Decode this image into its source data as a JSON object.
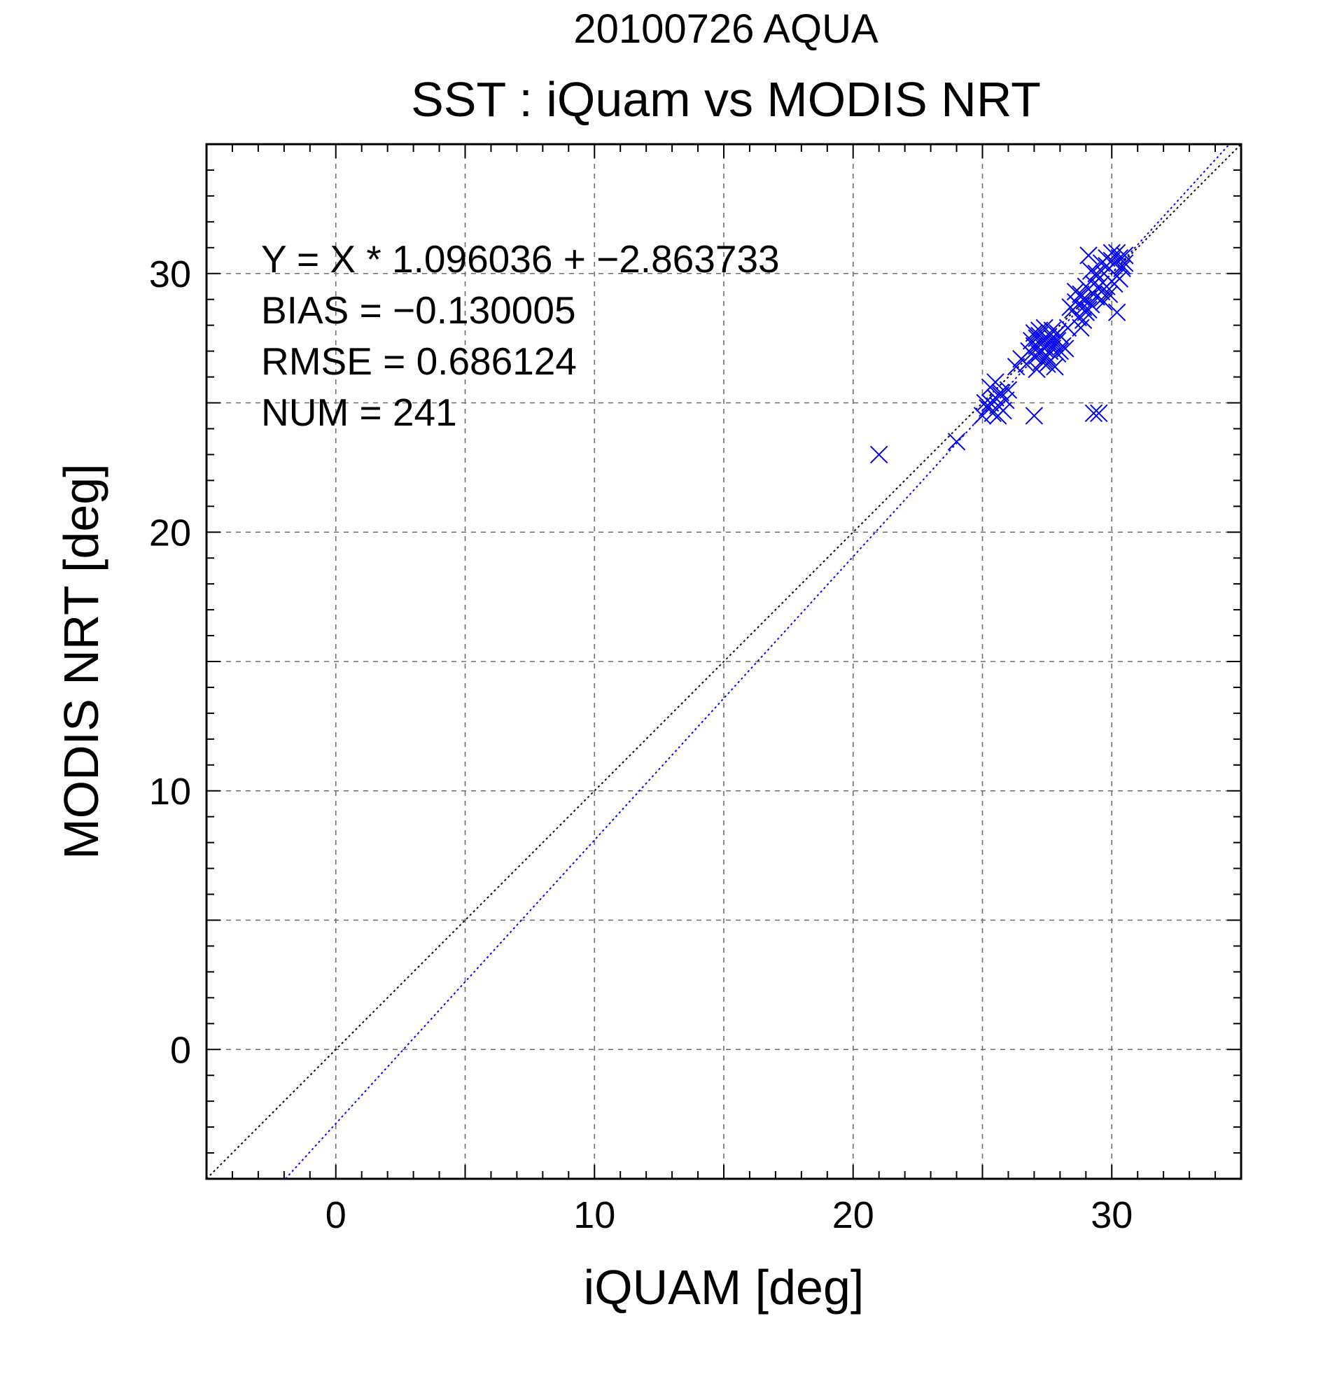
{
  "chart_data": {
    "type": "scatter",
    "title": "20100726 AQUA",
    "subtitle": "SST : iQuam vs MODIS NRT",
    "xlabel": "iQUAM [deg]",
    "ylabel": "MODIS NRT [deg]",
    "xlim": [
      -5,
      35
    ],
    "ylim": [
      -5,
      35
    ],
    "x_ticks": [
      0,
      10,
      20,
      30
    ],
    "y_ticks": [
      0,
      10,
      20,
      30
    ],
    "grid": true,
    "title_color": "#808080",
    "series": [
      {
        "color": "#0000ff",
        "marker": "x",
        "points": [
          [
            21.0,
            23.0
          ],
          [
            24.0,
            23.5
          ],
          [
            27.0,
            24.5
          ],
          [
            29.3,
            24.6
          ],
          [
            29.5,
            24.6
          ],
          [
            25.0,
            24.5
          ],
          [
            25.2,
            24.8
          ],
          [
            25.3,
            25.0
          ],
          [
            25.4,
            24.6
          ],
          [
            25.5,
            25.2
          ],
          [
            25.6,
            24.9
          ],
          [
            25.7,
            25.4
          ],
          [
            25.8,
            24.7
          ],
          [
            25.9,
            25.1
          ],
          [
            25.3,
            25.6
          ],
          [
            25.5,
            25.8
          ],
          [
            25.7,
            25.3
          ],
          [
            26.0,
            25.5
          ],
          [
            25.1,
            25.0
          ],
          [
            25.6,
            24.5
          ],
          [
            26.3,
            26.4
          ],
          [
            26.5,
            26.7
          ],
          [
            26.7,
            26.5
          ],
          [
            26.8,
            27.0
          ],
          [
            26.9,
            27.4
          ],
          [
            27.0,
            26.8
          ],
          [
            27.1,
            27.2
          ],
          [
            27.2,
            27.6
          ],
          [
            27.3,
            26.6
          ],
          [
            27.4,
            27.1
          ],
          [
            27.5,
            27.5
          ],
          [
            27.6,
            27.0
          ],
          [
            27.7,
            27.8
          ],
          [
            27.8,
            27.3
          ],
          [
            27.9,
            26.9
          ],
          [
            28.0,
            27.6
          ],
          [
            28.1,
            27.2
          ],
          [
            27.0,
            27.7
          ],
          [
            27.2,
            26.9
          ],
          [
            27.4,
            27.9
          ],
          [
            27.6,
            26.6
          ],
          [
            27.8,
            26.4
          ],
          [
            27.1,
            26.3
          ],
          [
            27.3,
            27.4
          ],
          [
            27.5,
            26.8
          ],
          [
            27.7,
            27.5
          ],
          [
            27.9,
            27.7
          ],
          [
            28.0,
            27.0
          ],
          [
            27.0,
            27.2
          ],
          [
            27.2,
            27.8
          ],
          [
            27.4,
            26.7
          ],
          [
            27.6,
            27.3
          ],
          [
            28.2,
            27.1
          ],
          [
            28.3,
            27.9
          ],
          [
            26.9,
            26.9
          ],
          [
            27.1,
            27.5
          ],
          [
            27.3,
            27.0
          ],
          [
            27.5,
            26.5
          ],
          [
            27.7,
            27.1
          ],
          [
            27.9,
            27.4
          ],
          [
            28.5,
            28.6
          ],
          [
            28.6,
            28.9
          ],
          [
            28.7,
            28.3
          ],
          [
            28.8,
            29.2
          ],
          [
            28.9,
            28.7
          ],
          [
            29.0,
            29.0
          ],
          [
            29.1,
            29.4
          ],
          [
            29.2,
            28.8
          ],
          [
            29.3,
            29.6
          ],
          [
            29.4,
            29.1
          ],
          [
            29.5,
            29.8
          ],
          [
            29.6,
            29.3
          ],
          [
            29.7,
            30.0
          ],
          [
            29.8,
            29.5
          ],
          [
            29.9,
            30.2
          ],
          [
            30.0,
            29.7
          ],
          [
            30.1,
            30.4
          ],
          [
            30.2,
            29.9
          ],
          [
            30.3,
            30.6
          ],
          [
            30.4,
            30.2
          ],
          [
            30.5,
            30.7
          ],
          [
            29.1,
            30.7
          ],
          [
            29.4,
            30.0
          ],
          [
            29.0,
            28.5
          ],
          [
            28.9,
            28.2
          ],
          [
            28.8,
            27.9
          ],
          [
            30.2,
            28.5
          ],
          [
            29.6,
            29.0
          ],
          [
            29.8,
            30.3
          ],
          [
            30.0,
            30.5
          ],
          [
            30.2,
            30.8
          ],
          [
            30.4,
            30.3
          ],
          [
            30.1,
            29.6
          ],
          [
            29.9,
            29.2
          ],
          [
            29.7,
            28.9
          ],
          [
            29.5,
            29.5
          ],
          [
            29.3,
            29.2
          ],
          [
            29.1,
            28.6
          ],
          [
            28.9,
            29.0
          ],
          [
            28.7,
            28.8
          ],
          [
            29.2,
            30.1
          ],
          [
            29.4,
            29.9
          ],
          [
            29.6,
            30.4
          ],
          [
            29.8,
            30.6
          ],
          [
            30.0,
            30.8
          ],
          [
            30.3,
            29.8
          ],
          [
            30.5,
            30.4
          ],
          [
            29.0,
            29.5
          ],
          [
            28.6,
            29.3
          ],
          [
            28.4,
            28.7
          ]
        ]
      }
    ],
    "lines": [
      {
        "color": "#000000",
        "style": "dotted",
        "slope": 1,
        "intercept": 0
      },
      {
        "color": "#0000ff",
        "style": "dotted",
        "slope": 1.096036,
        "intercept": -2.863733
      }
    ],
    "annotations": [
      "Y = X * 1.096036 + −2.863733",
      "BIAS = −0.130005",
      "RMSE = 0.686124",
      "NUM = 241"
    ]
  }
}
